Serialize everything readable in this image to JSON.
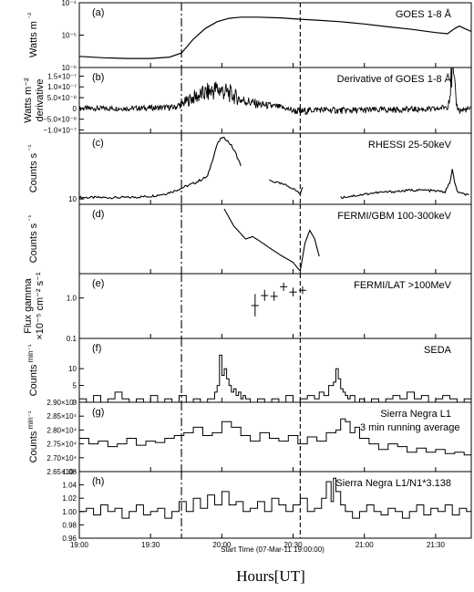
{
  "chart_data": {
    "type": "line",
    "xlabel": "Hours[UT]",
    "x_axis_note": "Start Time (07-Mar-11 19:00:00)",
    "x_ticks": [
      "19:00",
      "19:30",
      "20:00",
      "20:30",
      "21:00",
      "21:30"
    ],
    "x_range_minutes": [
      0,
      165
    ],
    "vertical_markers_minutes": [
      43,
      93
    ],
    "panels": [
      {
        "id": "a",
        "panel_label": "(a)",
        "title": "GOES 1-8 Å",
        "ylabel": [
          "Watts m",
          "⁻²"
        ],
        "y_ticks": [
          "10⁻⁴",
          "10⁻⁵",
          "10⁻⁶"
        ],
        "scale": "log",
        "ylim": [
          1e-06,
          0.0001
        ],
        "style": "line",
        "x": [
          0,
          10,
          20,
          30,
          38,
          43,
          48,
          53,
          58,
          63,
          68,
          75,
          85,
          93,
          100,
          110,
          120,
          130,
          140,
          150,
          155,
          158,
          160,
          163,
          165
        ],
        "y": [
          2.2e-06,
          2e-06,
          1.9e-06,
          1.9e-06,
          2.1e-06,
          2.8e-06,
          7.5e-06,
          1.6e-05,
          2.6e-05,
          3.3e-05,
          3.6e-05,
          3.6e-05,
          3.4e-05,
          3.1e-05,
          2.9e-05,
          2.6e-05,
          2.2e-05,
          1.8e-05,
          1.5e-05,
          1.2e-05,
          1.1e-05,
          1.6e-05,
          1.9e-05,
          1.5e-05,
          1.3e-05
        ]
      },
      {
        "id": "b",
        "panel_label": "(b)",
        "title": "Derivative of GOES 1-8 Å",
        "ylabel": [
          "Watts m⁻²",
          "derivative"
        ],
        "y_ticks": [
          "1.5×10⁻⁷",
          "1.0×10⁻⁷",
          "5.0×10⁻⁸",
          "0",
          "−5.0×10⁻⁸",
          "−1.0×10⁻⁷"
        ],
        "scale": "linear",
        "ylim": [
          -1.15e-07,
          1.9e-07
        ],
        "style": "noisy",
        "x": [
          0,
          20,
          40,
          43,
          48,
          53,
          58,
          63,
          68,
          75,
          85,
          90,
          93,
          100,
          110,
          120,
          130,
          140,
          150,
          155,
          156,
          157,
          158,
          159,
          160,
          163,
          165
        ],
        "y": [
          0,
          0,
          5e-09,
          2e-08,
          5e-08,
          7e-08,
          9e-08,
          7e-08,
          4e-08,
          2e-08,
          5e-09,
          -1e-08,
          -1.5e-08,
          -5e-09,
          -1e-08,
          -8e-09,
          -6e-09,
          -4e-09,
          -4e-09,
          1e-08,
          7e-08,
          1.8e-07,
          9e-08,
          1e-08,
          -1e-08,
          -5e-09,
          -3e-09
        ]
      },
      {
        "id": "c",
        "panel_label": "(c)",
        "title": "RHESSI 25-50keV",
        "ylabel": [
          "Counts s",
          "⁻¹"
        ],
        "y_ticks": [
          "100",
          "10"
        ],
        "scale": "log",
        "ylim": [
          7,
          800
        ],
        "style": "segments",
        "segments": [
          {
            "x": [
              0,
              20,
              30,
              36,
              40,
              44,
              48,
              52,
              54,
              56,
              58,
              60,
              62,
              64,
              66,
              68
            ],
            "y": [
              11,
              11,
              12,
              14,
              17,
              22,
              28,
              38,
              45,
              130,
              380,
              600,
              520,
              350,
              200,
              90
            ]
          },
          {
            "x": [
              80,
              83,
              86,
              89,
              91,
              93,
              94
            ],
            "y": [
              35,
              30,
              26,
              22,
              18,
              14,
              22
            ]
          },
          {
            "x": [
              110,
              114,
              118,
              124,
              130,
              136,
              140,
              145,
              150,
              154,
              156,
              157,
              158,
              159,
              161,
              164
            ],
            "y": [
              11,
              12,
              13,
              15,
              16,
              17,
              18,
              18,
              17,
              16,
              30,
              70,
              30,
              17,
              14,
              13
            ]
          }
        ]
      },
      {
        "id": "d",
        "panel_label": "(d)",
        "title": "FERMI/GBM 100-300keV",
        "ylabel": [
          "Counts s",
          "⁻¹"
        ],
        "y_ticks": [
          "1000",
          "100"
        ],
        "scale": "log",
        "ylim": [
          28,
          3000
        ],
        "style": "segments",
        "segments": [
          {
            "x": [
              61,
              65,
              70,
              73,
              76,
              80,
              85,
              90,
              92,
              93,
              95,
              97,
              99,
              101
            ],
            "y": [
              2200,
              700,
              290,
              340,
              250,
              160,
              95,
              60,
              40,
              34,
              220,
              520,
              300,
              90
            ]
          }
        ]
      },
      {
        "id": "e",
        "panel_label": "(e)",
        "title": "FERMI/LAT >100MeV",
        "ylabel": [
          "Flux gamma",
          "×10⁻⁵ cm⁻² s⁻¹"
        ],
        "y_ticks": [
          "1.0",
          "0.1"
        ],
        "scale": "log",
        "ylim": [
          0.1,
          4
        ],
        "style": "errorbars",
        "x": [
          74,
          78,
          82,
          86,
          90,
          94
        ],
        "y": [
          0.65,
          1.15,
          1.1,
          1.9,
          1.4,
          1.55
        ],
        "ylo": [
          0.35,
          0.85,
          0.85,
          1.5,
          1.1,
          1.25
        ],
        "yhi": [
          1.25,
          1.6,
          1.45,
          2.4,
          1.8,
          1.95
        ]
      },
      {
        "id": "f",
        "panel_label": "(f)",
        "title": "SEDA",
        "ylabel": [
          "Counts",
          "min⁻¹"
        ],
        "y_ticks": [
          "10",
          "5",
          "0"
        ],
        "scale": "linear",
        "ylim": [
          0,
          19
        ],
        "style": "step",
        "x": [
          0,
          3,
          6,
          9,
          12,
          15,
          18,
          21,
          24,
          27,
          30,
          33,
          36,
          39,
          42,
          45,
          48,
          51,
          54,
          57,
          58,
          59,
          60,
          61,
          62,
          63,
          64,
          65,
          66,
          67,
          68,
          69,
          70,
          72,
          75,
          78,
          81,
          84,
          87,
          90,
          93,
          96,
          99,
          101,
          103,
          105,
          107,
          108,
          109,
          110,
          111,
          112,
          113,
          114,
          116,
          118,
          120,
          123,
          126,
          129,
          132,
          135,
          138,
          141,
          144,
          147,
          150,
          153,
          156,
          159,
          162
        ],
        "y": [
          1,
          0,
          2,
          0,
          1,
          3,
          1,
          0,
          1,
          0,
          2,
          0,
          1,
          0,
          2,
          0,
          1,
          0,
          1,
          3,
          5,
          14,
          8,
          10,
          7,
          5,
          3,
          4,
          2,
          3,
          1,
          2,
          1,
          0,
          1,
          0,
          1,
          0,
          2,
          0,
          1,
          2,
          1,
          3,
          2,
          5,
          6,
          10,
          7,
          4,
          3,
          2,
          1,
          2,
          0,
          1,
          0,
          1,
          0,
          1,
          2,
          1,
          3,
          1,
          2,
          0,
          1,
          2,
          1,
          0,
          1
        ]
      },
      {
        "id": "g",
        "panel_label": "(g)",
        "title": "Sierra Negra L1",
        "subtitle": "3 min running average",
        "ylabel": [
          "Counts",
          "min⁻¹"
        ],
        "y_ticks": [
          "2.90×10⁴",
          "2.85×10⁴",
          "2.80×10⁴",
          "2.75×10⁴",
          "2.70×10⁴",
          "2.65×10⁴"
        ],
        "scale": "linear",
        "ylim": [
          26500,
          29000
        ],
        "style": "step",
        "x": [
          0,
          4,
          8,
          12,
          16,
          20,
          24,
          28,
          32,
          36,
          40,
          44,
          48,
          52,
          56,
          60,
          64,
          68,
          72,
          76,
          80,
          84,
          88,
          92,
          96,
          100,
          104,
          108,
          110,
          112,
          114,
          116,
          118,
          122,
          126,
          130,
          134,
          138,
          142,
          146,
          150,
          154,
          158,
          162
        ],
        "y": [
          27700,
          27500,
          27600,
          27400,
          27500,
          27700,
          27450,
          27600,
          27550,
          27700,
          27800,
          27900,
          28100,
          27800,
          27900,
          28300,
          28100,
          27800,
          27600,
          27900,
          27700,
          27600,
          27800,
          27500,
          27750,
          27600,
          27900,
          28000,
          28400,
          28300,
          27900,
          28100,
          27700,
          27500,
          27300,
          27500,
          27400,
          27200,
          27350,
          27200,
          27300,
          27150,
          27200,
          27100
        ]
      },
      {
        "id": "h",
        "panel_label": "(h)",
        "title": "Sierra Negra L1/N1*3.138",
        "ylabel": [],
        "y_ticks": [
          "1.06",
          "1.04",
          "1.02",
          "1.00",
          "0.98",
          "0.96"
        ],
        "scale": "linear",
        "ylim": [
          0.96,
          1.06
        ],
        "style": "step",
        "x": [
          0,
          3,
          6,
          9,
          12,
          15,
          18,
          21,
          24,
          27,
          30,
          33,
          36,
          39,
          42,
          45,
          48,
          51,
          54,
          57,
          60,
          63,
          66,
          69,
          72,
          75,
          78,
          81,
          84,
          87,
          90,
          93,
          96,
          99,
          102,
          104,
          106,
          107,
          108,
          110,
          112,
          115,
          118,
          121,
          124,
          127,
          130,
          133,
          136,
          139,
          142,
          145,
          148,
          151,
          154,
          157,
          160,
          163
        ],
        "y": [
          1.0,
          1.005,
          0.995,
          1.01,
          1.0,
          1.005,
          0.99,
          1.0,
          1.01,
          0.995,
          1.0,
          1.005,
          0.99,
          1.0,
          1.015,
          1.0,
          1.02,
          1.005,
          1.025,
          1.01,
          1.03,
          1.01,
          1.015,
          1.0,
          1.005,
          1.015,
          1.0,
          1.02,
          1.01,
          1.0,
          1.01,
          1.02,
          1.0,
          1.005,
          1.02,
          1.045,
          1.015,
          1.05,
          1.03,
          1.01,
          1.0,
          0.99,
          1.0,
          1.01,
          1.0,
          0.995,
          1.005,
          1.0,
          0.99,
          1.0,
          1.01,
          0.995,
          1.005,
          1.0,
          1.01,
          0.995,
          1.005,
          1.0
        ]
      }
    ]
  }
}
